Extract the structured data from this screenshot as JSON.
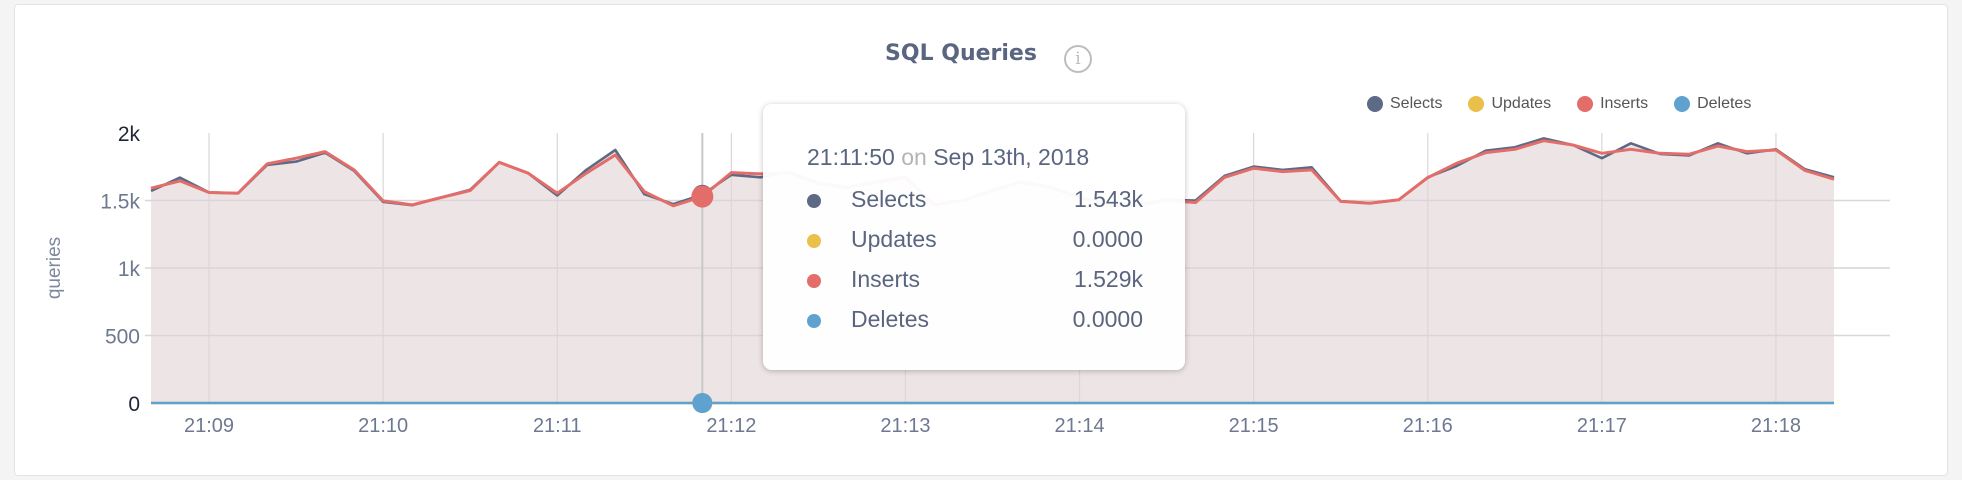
{
  "title": "SQL Queries",
  "info_icon": "info-circle-icon",
  "legend": [
    {
      "name": "Selects",
      "color": "#5d6a86"
    },
    {
      "name": "Updates",
      "color": "#ebc04a"
    },
    {
      "name": "Inserts",
      "color": "#e36d68"
    },
    {
      "name": "Deletes",
      "color": "#5fa2d0"
    }
  ],
  "tooltip": {
    "time": "21:11:50",
    "on": "on",
    "date": "Sep 13th, 2018",
    "rows": [
      {
        "label": "Selects",
        "value": "1.543k",
        "color": "#5d6a86"
      },
      {
        "label": "Updates",
        "value": "0.0000",
        "color": "#ebc04a"
      },
      {
        "label": "Inserts",
        "value": "1.529k",
        "color": "#e36d68"
      },
      {
        "label": "Deletes",
        "value": "0.0000",
        "color": "#5fa2d0"
      }
    ]
  },
  "chart_data": {
    "type": "line",
    "title": "SQL Queries",
    "ylabel": "queries",
    "xlabel": "",
    "ylim": [
      0,
      2000
    ],
    "xlim": [
      "21:08:40",
      "21:18:20"
    ],
    "yticks": [
      "0",
      "500",
      "1k",
      "1.5k",
      "2k"
    ],
    "ytick_values": [
      0,
      500,
      1000,
      1500,
      2000
    ],
    "xticks": [
      "21:09",
      "21:10",
      "21:11",
      "21:12",
      "21:13",
      "21:14",
      "21:15",
      "21:16",
      "21:17",
      "21:18"
    ],
    "grid": true,
    "legend_position": "top-right",
    "hover_x": "21:11:50",
    "x": [
      "21:08:40",
      "21:08:50",
      "21:09:00",
      "21:09:10",
      "21:09:20",
      "21:09:30",
      "21:09:40",
      "21:09:50",
      "21:10:00",
      "21:10:10",
      "21:10:20",
      "21:10:30",
      "21:10:40",
      "21:10:50",
      "21:11:00",
      "21:11:10",
      "21:11:20",
      "21:11:30",
      "21:11:40",
      "21:11:50",
      "21:12:00",
      "21:12:10",
      "21:12:20",
      "21:12:30",
      "21:12:40",
      "21:12:50",
      "21:13:00",
      "21:13:10",
      "21:13:20",
      "21:13:30",
      "21:13:40",
      "21:13:50",
      "21:14:00",
      "21:14:10",
      "21:14:20",
      "21:14:30",
      "21:14:40",
      "21:14:50",
      "21:15:00",
      "21:15:10",
      "21:15:20",
      "21:15:30",
      "21:15:40",
      "21:15:50",
      "21:16:00",
      "21:16:10",
      "21:16:20",
      "21:16:30",
      "21:16:40",
      "21:16:50",
      "21:17:00",
      "21:17:10",
      "21:17:20",
      "21:17:30",
      "21:17:40",
      "21:17:50",
      "21:18:00",
      "21:18:10",
      "21:18:20"
    ],
    "series": [
      {
        "name": "Selects",
        "color": "#5d6a86",
        "values": [
          1571,
          1670,
          1560,
          1554,
          1763,
          1788,
          1855,
          1720,
          1490,
          1465,
          1522,
          1580,
          1783,
          1702,
          1537,
          1727,
          1874,
          1547,
          1473,
          1543,
          1690,
          1672,
          1712,
          1630,
          1600,
          1640,
          1675,
          1470,
          1505,
          1580,
          1640,
          1600,
          1527,
          1470,
          1470,
          1505,
          1500,
          1682,
          1751,
          1727,
          1746,
          1495,
          1480,
          1505,
          1672,
          1756,
          1869,
          1894,
          1960,
          1911,
          1813,
          1924,
          1845,
          1833,
          1924,
          1850,
          1879,
          1731,
          1672
        ]
      },
      {
        "name": "Updates",
        "color": "#ebc04a",
        "values": [
          0,
          0,
          0,
          0,
          0,
          0,
          0,
          0,
          0,
          0,
          0,
          0,
          0,
          0,
          0,
          0,
          0,
          0,
          0,
          0,
          0,
          0,
          0,
          0,
          0,
          0,
          0,
          0,
          0,
          0,
          0,
          0,
          0,
          0,
          0,
          0,
          0,
          0,
          0,
          0,
          0,
          0,
          0,
          0,
          0,
          0,
          0,
          0,
          0,
          0,
          0,
          0,
          0,
          0,
          0,
          0,
          0,
          0,
          0
        ]
      },
      {
        "name": "Inserts",
        "color": "#e36d68",
        "values": [
          1591,
          1645,
          1559,
          1554,
          1771,
          1813,
          1862,
          1727,
          1497,
          1468,
          1522,
          1574,
          1783,
          1702,
          1554,
          1702,
          1837,
          1566,
          1461,
          1529,
          1707,
          1697,
          1705,
          1625,
          1595,
          1635,
          1670,
          1465,
          1500,
          1575,
          1635,
          1595,
          1522,
          1465,
          1465,
          1500,
          1485,
          1672,
          1739,
          1714,
          1727,
          1493,
          1480,
          1505,
          1670,
          1776,
          1855,
          1879,
          1943,
          1911,
          1850,
          1879,
          1850,
          1842,
          1904,
          1862,
          1874,
          1722,
          1658
        ]
      },
      {
        "name": "Deletes",
        "color": "#5fa2d0",
        "values": [
          0,
          0,
          0,
          0,
          0,
          0,
          0,
          0,
          0,
          0,
          0,
          0,
          0,
          0,
          0,
          0,
          0,
          0,
          0,
          0,
          0,
          0,
          0,
          0,
          0,
          0,
          0,
          0,
          0,
          0,
          0,
          0,
          0,
          0,
          0,
          0,
          0,
          0,
          0,
          0,
          0,
          0,
          0,
          0,
          0,
          0,
          0,
          0,
          0,
          0,
          0,
          0,
          0,
          0,
          0,
          0,
          0,
          0,
          0
        ]
      }
    ],
    "area_fill": "#ede4e6"
  }
}
